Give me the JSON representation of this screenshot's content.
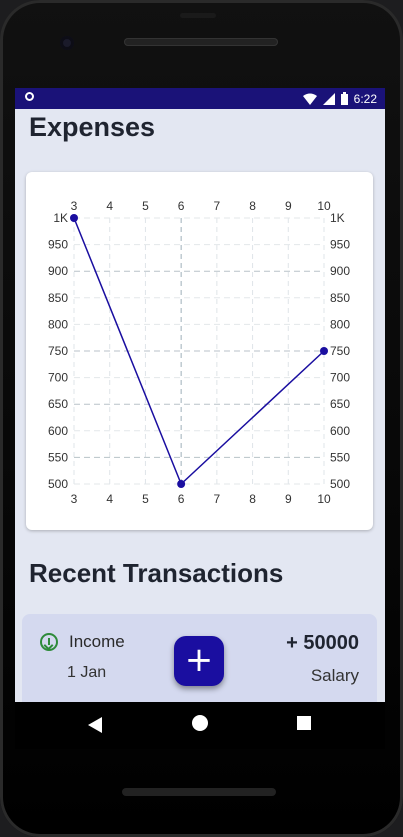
{
  "status_bar": {
    "time": "6:22"
  },
  "header": {
    "title": "Expenses"
  },
  "chart_data": {
    "type": "line",
    "x_ticks": [
      3,
      4,
      5,
      6,
      7,
      8,
      9,
      10
    ],
    "y_ticks": [
      "500",
      "550",
      "600",
      "650",
      "700",
      "750",
      "800",
      "850",
      "900",
      "950",
      "1K"
    ],
    "ylim": [
      500,
      1000
    ],
    "xlim": [
      3,
      10
    ],
    "grid": true,
    "series": [
      {
        "values": [
          {
            "x": 3,
            "y": 1000
          },
          {
            "x": 6,
            "y": 500
          },
          {
            "x": 10,
            "y": 750
          }
        ],
        "color": "#1a0ea0"
      }
    ]
  },
  "section": {
    "recent_title": "Recent Transactions"
  },
  "transaction": {
    "type": "Income",
    "date": "1 Jan",
    "amount": "+ 50000",
    "category": "Salary"
  },
  "fab": {
    "label": "+"
  },
  "icons": {
    "status": [
      "wifi-icon",
      "signal-icon",
      "battery-icon"
    ],
    "nav": [
      "back-icon",
      "home-icon",
      "recents-icon"
    ]
  }
}
